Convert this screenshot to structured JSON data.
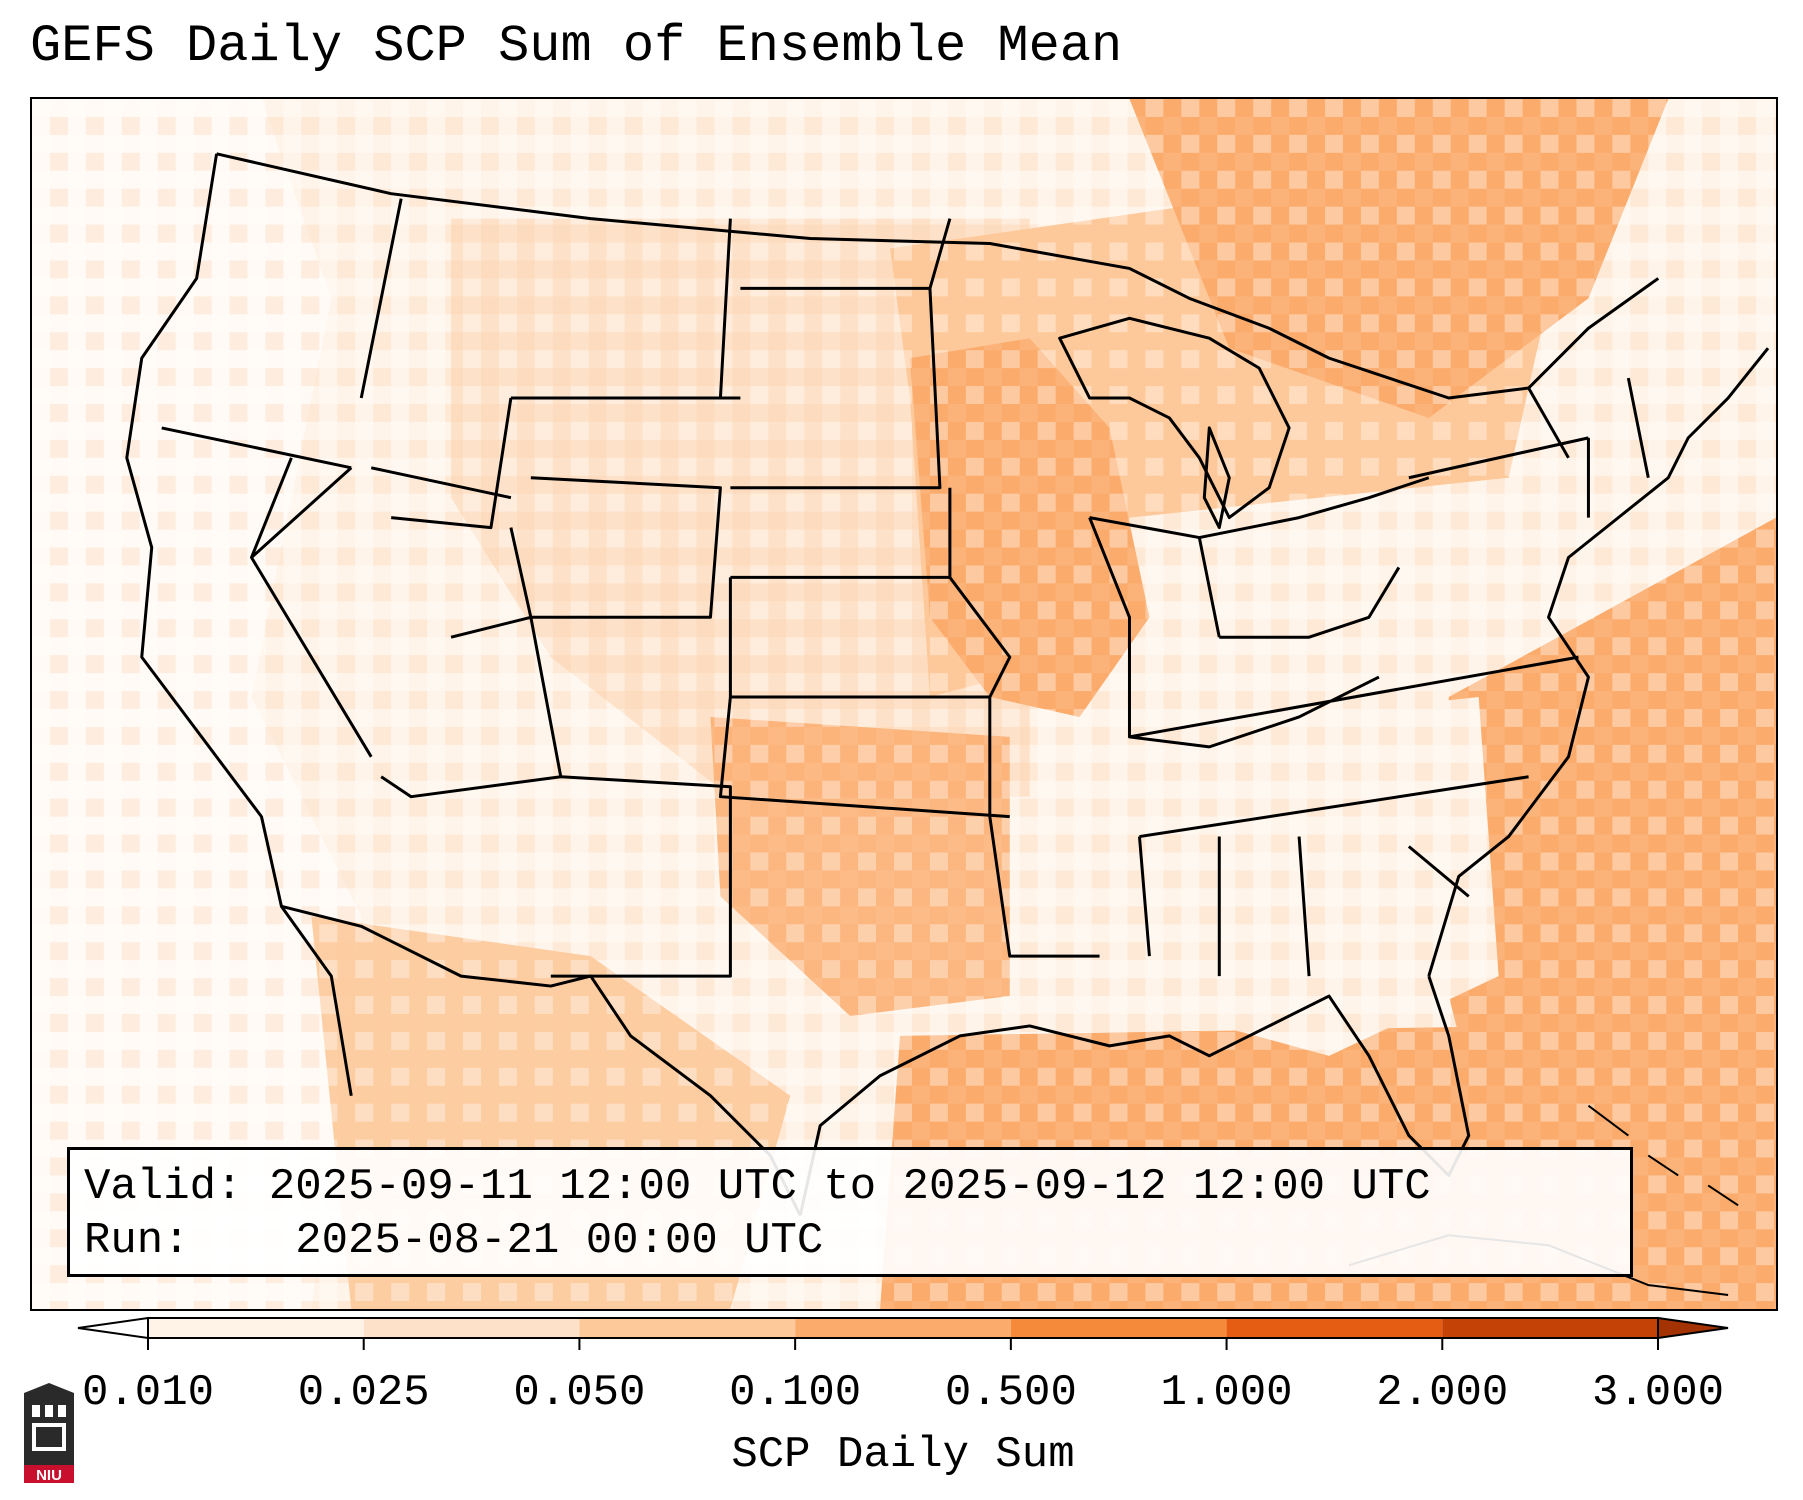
{
  "title": "GEFS Daily SCP Sum of Ensemble Mean",
  "info": {
    "valid_label": "Valid:",
    "valid_value": "2025-09-11 12:00 UTC to 2025-09-12 12:00 UTC",
    "run_label": "Run:",
    "run_value": "2025-08-21 00:00 UTC"
  },
  "colorbar": {
    "label": "SCP Daily Sum",
    "levels": [
      "0.010",
      "0.025",
      "0.050",
      "0.100",
      "0.500",
      "1.000",
      "2.000",
      "3.000"
    ],
    "colors": [
      "#ffffff",
      "#fff3e8",
      "#fde2c9",
      "#fdc99a",
      "#fbac6d",
      "#f58a3a",
      "#e45d12",
      "#c44206",
      "#a33303"
    ]
  },
  "colors": {
    "very_light": "#fff4ea",
    "light": "#fde2c9",
    "medium": "#fdc99a",
    "strong": "#fbac6d",
    "outline": "#000000"
  },
  "logo": {
    "text": "NIU",
    "icon": "university-building-icon"
  }
}
